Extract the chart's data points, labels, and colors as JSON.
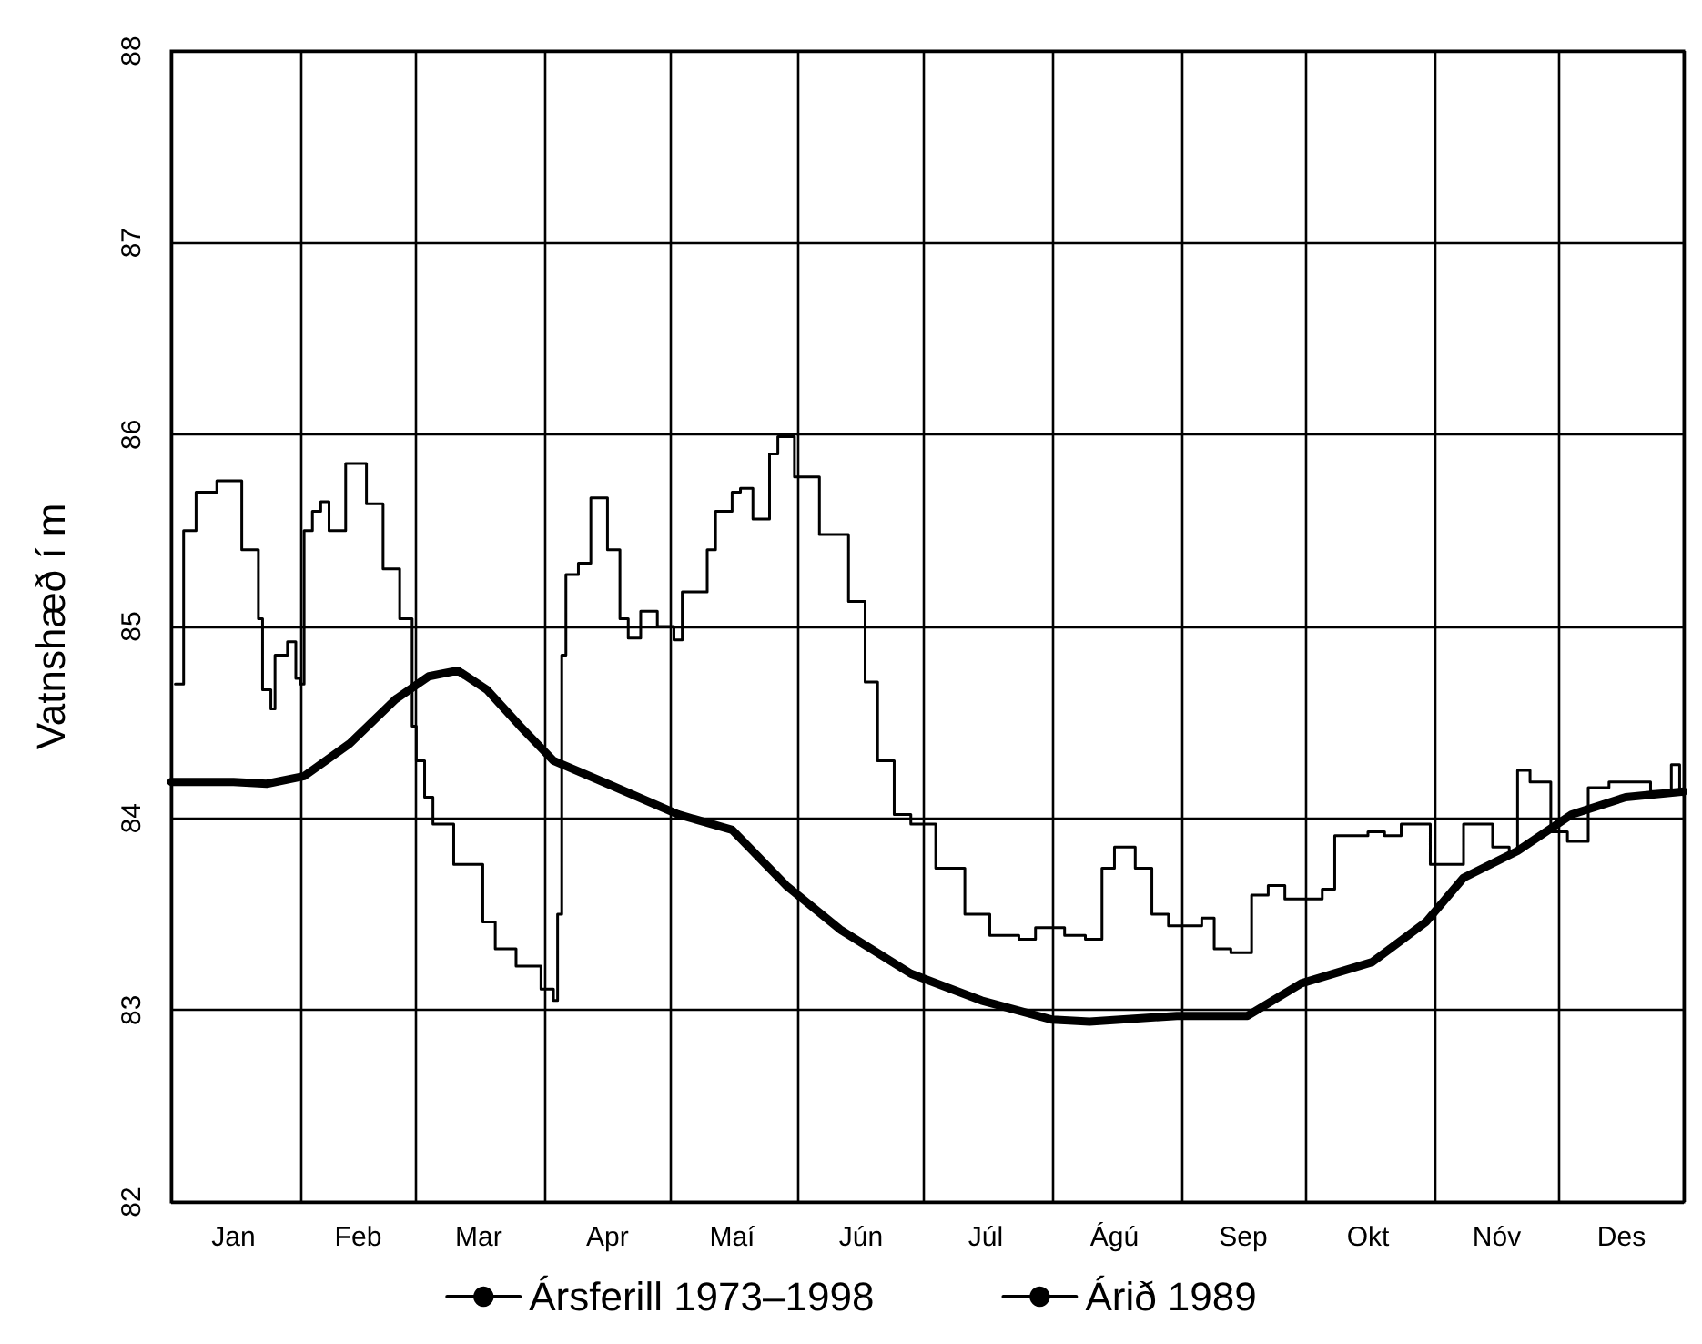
{
  "chart_data": {
    "type": "line",
    "ylabel": "Vatnshæð í m",
    "xlim": [
      "--01-01",
      "--12-31"
    ],
    "xticks": [
      {
        "value": "--01-01",
        "label": null
      },
      {
        "value": "--01-16",
        "label": "Jan"
      },
      {
        "value": "--02-01",
        "label": null
      },
      {
        "value": "--02-15",
        "label": "Feb"
      },
      {
        "value": "--03-01",
        "label": null
      },
      {
        "value": "--03-16",
        "label": "Mar"
      },
      {
        "value": "--04-01",
        "label": null
      },
      {
        "value": "--04-16",
        "label": "Apr"
      },
      {
        "value": "--05-01",
        "label": null
      },
      {
        "value": "--05-16",
        "label": "Maí"
      },
      {
        "value": "--06-01",
        "label": null
      },
      {
        "value": "--06-16",
        "label": "Jún"
      },
      {
        "value": "--07-01",
        "label": null
      },
      {
        "value": "--07-16",
        "label": "Júl"
      },
      {
        "value": "--08-01",
        "label": null
      },
      {
        "value": "--08-16",
        "label": "Ágú"
      },
      {
        "value": "--09-01",
        "label": null
      },
      {
        "value": "--09-16",
        "label": "Sep"
      },
      {
        "value": "--10-01",
        "label": null
      },
      {
        "value": "--10-16",
        "label": "Okt"
      },
      {
        "value": "--11-01",
        "label": null
      },
      {
        "value": "--11-16",
        "label": "Nóv"
      },
      {
        "value": "--12-01",
        "label": null
      },
      {
        "value": "--12-16",
        "label": "Des"
      },
      {
        "value": "--12-31",
        "label": null
      }
    ],
    "ylim": [
      82,
      88
    ],
    "yticks": [
      82,
      83,
      84,
      85,
      86,
      87,
      88
    ],
    "grid": true,
    "legend": "bottom",
    "marker": "none",
    "series": [
      {
        "name": "Ársferill 1973–1998",
        "color": "#000000",
        "x": [
          "--01-01",
          "--01-16",
          "--01-24",
          "--02-02",
          "--02-13",
          "--02-24",
          "--03-04",
          "--03-11",
          "--03-18",
          "--03-26",
          "--04-03",
          "--04-16",
          "--05-03",
          "--05-16",
          "--05-29",
          "--06-11",
          "--06-28",
          "--07-15",
          "--08-01",
          "--08-10",
          "--08-31",
          "--09-17",
          "--09-30",
          "--10-17",
          "--10-30",
          "--11-08",
          "--11-21",
          "--12-04",
          "--12-17",
          "--12-31"
        ],
        "values": [
          84.19,
          84.19,
          84.18,
          84.22,
          84.39,
          84.62,
          84.74,
          84.77,
          84.67,
          84.48,
          84.3,
          84.18,
          84.02,
          83.94,
          83.65,
          83.42,
          83.19,
          83.05,
          82.95,
          82.94,
          82.97,
          82.97,
          83.14,
          83.25,
          83.46,
          83.69,
          83.83,
          84.02,
          84.11,
          84.14
        ]
      },
      {
        "name": "Árið 1989",
        "color": "#000000",
        "type": "step",
        "x": [
          "--01-02",
          "--01-04",
          "--01-07",
          "--01-12",
          "--01-18",
          "--01-22",
          "--01-23",
          "--01-25",
          "--01-26",
          "--01-29",
          "--01-31",
          "--02-01",
          "--02-02",
          "--02-04",
          "--02-06",
          "--02-08",
          "--02-12",
          "--02-17",
          "--02-21",
          "--02-25",
          "--02-28",
          "--03-01",
          "--03-03",
          "--03-05",
          "--03-10",
          "--03-15",
          "--03-17",
          "--03-20",
          "--03-25",
          "--03-31",
          "--04-03",
          "--04-04",
          "--04-05",
          "--04-06",
          "--04-09",
          "--04-12",
          "--04-16",
          "--04-19",
          "--04-21",
          "--04-24",
          "--04-28",
          "--05-02",
          "--05-04",
          "--05-10",
          "--05-12",
          "--05-16",
          "--05-18",
          "--05-21",
          "--05-25",
          "--05-27",
          "--05-31",
          "--06-06",
          "--06-13",
          "--06-17",
          "--06-20",
          "--06-24",
          "--06-28",
          "--07-04",
          "--07-11",
          "--07-17",
          "--07-24",
          "--07-28",
          "--08-04",
          "--08-09",
          "--08-13",
          "--08-16",
          "--08-21",
          "--08-25",
          "--08-29",
          "--09-05",
          "--09-06",
          "--09-09",
          "--09-13",
          "--09-18",
          "--09-22",
          "--09-26",
          "--10-05",
          "--10-08",
          "--10-11",
          "--10-16",
          "--10-20",
          "--10-24",
          "--10-31",
          "--11-08",
          "--11-15",
          "--11-19",
          "--11-21",
          "--11-24",
          "--11-29",
          "--12-03",
          "--12-08",
          "--12-13",
          "--12-23",
          "--12-28",
          "--12-30",
          "--12-31"
        ],
        "values": [
          84.7,
          85.5,
          85.7,
          85.76,
          85.4,
          85.04,
          84.67,
          84.57,
          84.85,
          84.92,
          84.73,
          84.7,
          85.5,
          85.6,
          85.65,
          85.5,
          85.85,
          85.64,
          85.3,
          85.04,
          84.48,
          84.3,
          84.11,
          83.97,
          83.76,
          83.76,
          83.46,
          83.32,
          83.23,
          83.11,
          83.05,
          83.5,
          84.85,
          85.27,
          85.33,
          85.67,
          85.4,
          85.04,
          84.94,
          85.08,
          85.0,
          84.93,
          85.18,
          85.4,
          85.6,
          85.7,
          85.72,
          85.56,
          85.9,
          85.99,
          85.78,
          85.48,
          85.13,
          84.71,
          84.3,
          84.02,
          83.97,
          83.74,
          83.5,
          83.39,
          83.37,
          83.43,
          83.39,
          83.37,
          83.74,
          83.85,
          83.74,
          83.5,
          83.44,
          83.44,
          83.48,
          83.32,
          83.3,
          83.6,
          83.65,
          83.58,
          83.63,
          83.91,
          83.91,
          83.93,
          83.91,
          83.97,
          83.76,
          83.97,
          83.85,
          83.83,
          84.25,
          84.19,
          83.93,
          83.88,
          84.16,
          84.19,
          84.14,
          84.28,
          84.14,
          84.12
        ]
      }
    ]
  }
}
